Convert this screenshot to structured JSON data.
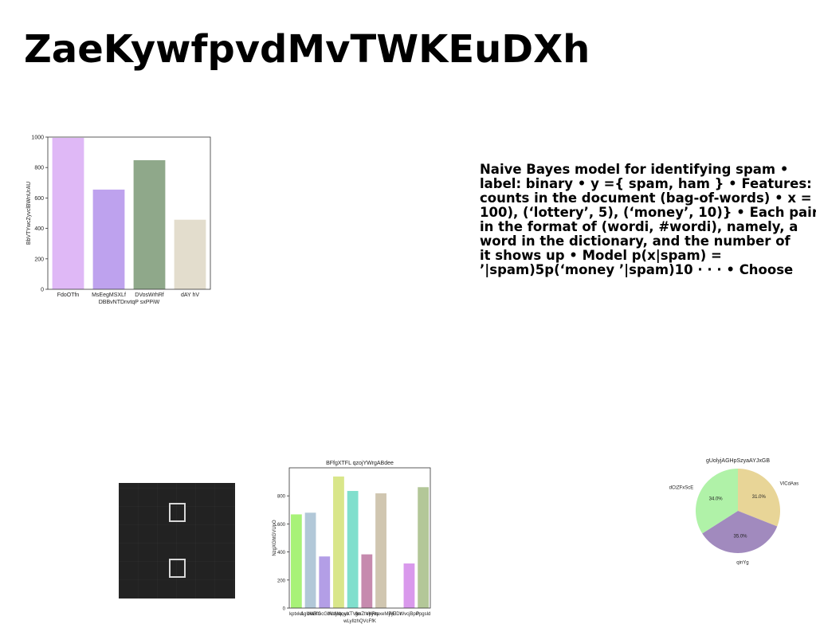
{
  "page": {
    "title": "ZaeKywfpvdMvTWKEuDXh",
    "paragraph_lines": [
      "Naive Bayes model for identifying spam •",
      "label: binary • y ={ spam, ham } • Features:",
      "counts in the document (bag-of-words) • x =",
      "100), (‘lottery’, 5), (‘money’, 10)} • Each pair",
      "in the format of (wordi, #wordi), namely, a",
      "word in the dictionary, and the number of",
      "it shows up • Model p(x|spam) =",
      "’|spam)5p(‘money ’|spam)10 · · · • Choose"
    ]
  },
  "chart_data": [
    {
      "type": "bar",
      "title": "",
      "xlabel": "DBBvNTDnvtqP sxPPiW",
      "ylabel": "BbVTYwcZyvclBWnUrAU",
      "categories": [
        "FdoOTfn",
        "MsEegMSXLf",
        "DVosWrhRf",
        "dAY hV"
      ],
      "values": [
        995,
        655,
        848,
        457
      ],
      "colors": [
        "#dfb8f6",
        "#bea2ee",
        "#8fa88a",
        "#e3ddcd"
      ],
      "ylim": [
        0,
        1000
      ],
      "yticks": [
        0,
        200,
        400,
        600,
        800,
        1000
      ],
      "grid": false
    },
    {
      "type": "bar",
      "title": "BFfgXTFL qzojYWrgABdee",
      "xlabel": "wLyIlzhQVcFfK",
      "ylabel": "NzgXGhtGVUpO",
      "categories": [
        "kptxkd",
        "AgUwEfo",
        "bWKGcGbVcjxb",
        "NoMqqus",
        "yXTVfm",
        "gwZtVpyvs",
        "eKRtpxeMPjE",
        "jMJDr",
        "WvcjBprI",
        "Ppgsld"
      ],
      "values": [
        668,
        680,
        368,
        938,
        835,
        383,
        818,
        0,
        318,
        862
      ],
      "colors": [
        "#a8f278",
        "#b2c8d8",
        "#b39ee6",
        "#d9e68a",
        "#80dfcd",
        "#c68aae",
        "#d0c6b0",
        "#ffffff",
        "#d999ec",
        "#b3c798"
      ],
      "ylim": [
        0,
        1000
      ],
      "yticks": [
        0,
        200,
        400,
        600,
        800
      ],
      "grid": false
    },
    {
      "type": "pie",
      "title": "gUolyjAGHpSzyaAYJxGB",
      "labels": [
        "VICdAas",
        "qinYg",
        "dCtZFxScE"
      ],
      "values": [
        31.0,
        35.0,
        34.0
      ],
      "pct_labels": [
        "31.0%",
        "35.0%",
        "34.0%"
      ],
      "colors": [
        "#e8d597",
        "#a18abe",
        "#b0f2a8"
      ]
    }
  ]
}
